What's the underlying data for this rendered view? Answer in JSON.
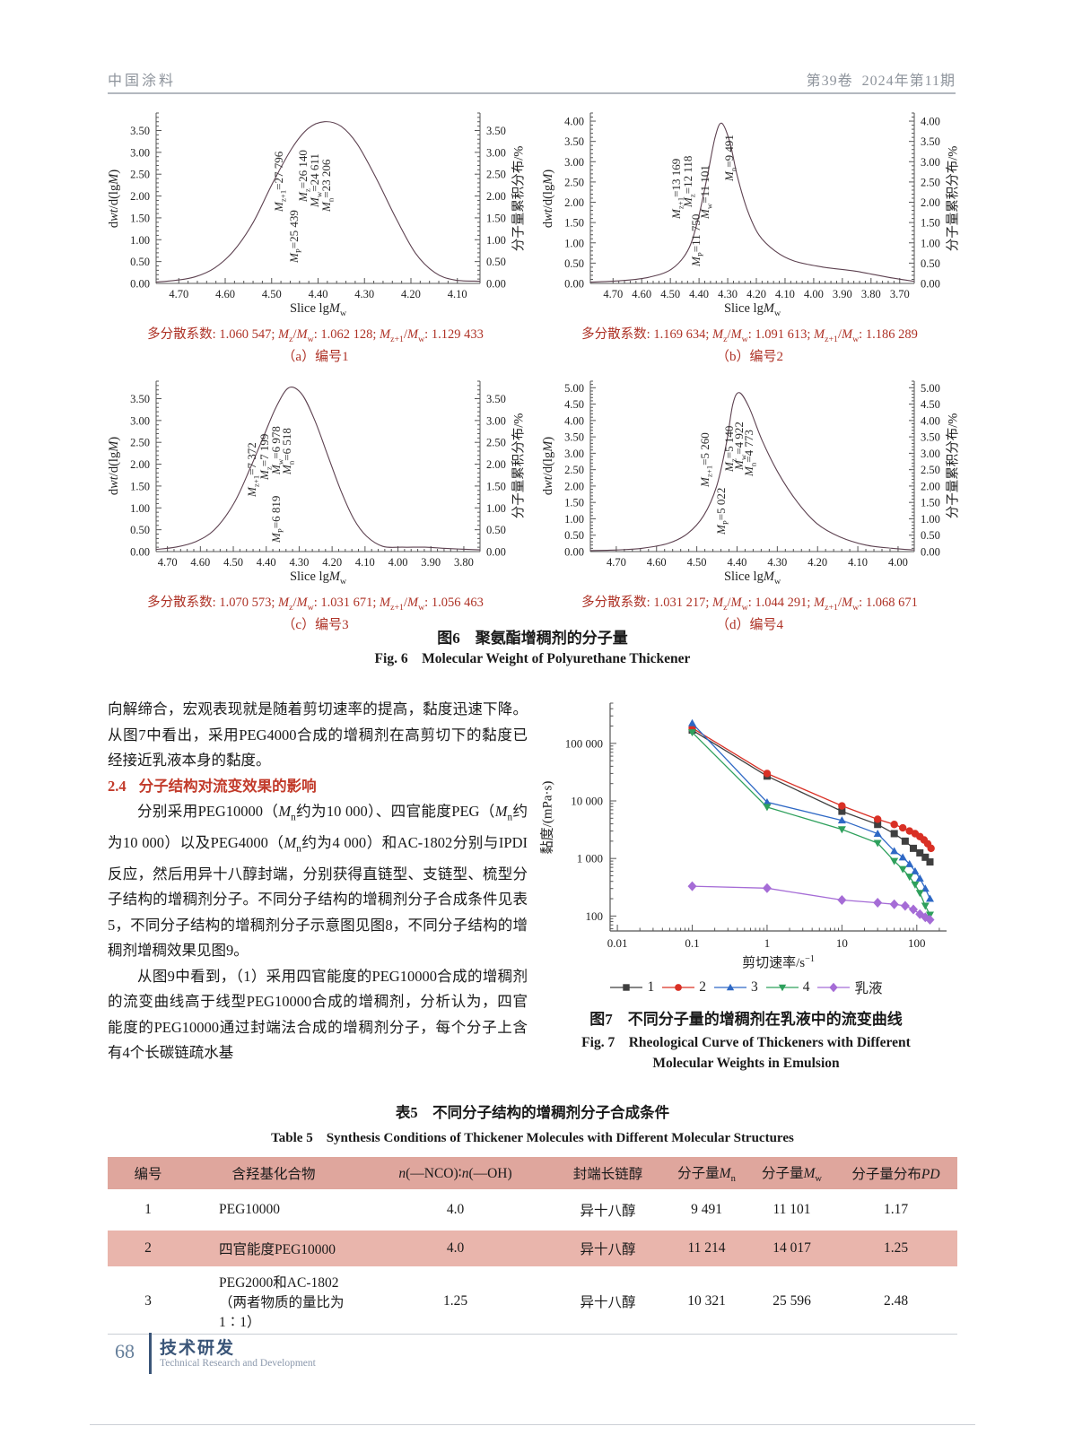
{
  "header": {
    "journal": "中国涂料",
    "volume": "第39卷",
    "issue": "2024年第11期"
  },
  "fig6": {
    "caption_cn": "图6　聚氨酯增稠剂的分子量",
    "caption_en": "Fig. 6　Molecular Weight of Polyurethane Thickener",
    "shared": {
      "y_title_left": {
        "p1": "d",
        "i1": "wt",
        "p2": "/d(lg",
        "i2": "M",
        "p3": ")"
      },
      "y_title_right": "分子量累积分布/%",
      "x_title": {
        "text": "Slice lg",
        "m": "M",
        "sub": "w"
      },
      "pd_label": "多分散系数",
      "ratio1": [
        "z",
        "w"
      ],
      "ratio2": [
        "z+1",
        "w"
      ]
    }
  },
  "section": {
    "para1": "向解缔合，宏观表现就是随着剪切速率的提高，黏度迅速下降。从图7中看出，采用PEG4000合成的增稠剂在高剪切下的黏度已经接近乳液本身的黏度。",
    "heading_num": "2.4",
    "heading_text": "分子结构对流变效果的影响",
    "para2_html": "分别采用PEG10000（<i>M</i><sub>n</sub>约为10 000）、四官能度PEG（<i>M</i><sub>n</sub>约为10 000）以及PEG4000（<i>M</i><sub>n</sub>约为4 000）和AC-1802分别与IPDI反应，然后用异十八醇封端，分别获得直链型、支链型、梳型分子结构的增稠剂分子。不同分子结构的增稠剂分子合成条件见表5，不同分子结构的增稠剂分子示意图见图8，不同分子结构的增稠剂增稠效果见图9。",
    "para3": "从图9中看到，（1）采用四官能度的PEG10000合成的增稠剂的流变曲线高于线型PEG10000合成的增稠剂，分析认为，四官能度的PEG10000通过封端法合成的增稠剂分子，每个分子上含有4个长碳链疏水基"
  },
  "fig7": {
    "caption_cn": "图7　不同分子量的增稠剂在乳液中的流变曲线",
    "caption_en1": "Fig. 7　Rheological Curve of Thickeners with Different",
    "caption_en2": "Molecular Weights in Emulsion",
    "ylabel": "黏度/(mPa·s)",
    "xlabel_main": "剪切速率/s",
    "xlabel_sup": "−1"
  },
  "chart_data": {
    "fig6_gpc": [
      {
        "type": "line",
        "id": "a",
        "sublabel": "（a）编号1",
        "pd": "1.060 547",
        "mz_mw": "1.062 128",
        "mz1_mw": "1.129 433",
        "ymax": 3.9,
        "ytick_max": 3.5,
        "x_ticks": [
          "4.70",
          "4.60",
          "4.50",
          "4.40",
          "4.30",
          "4.20",
          "4.10"
        ],
        "tick_f0": 0.07,
        "tick_f1": 0.93,
        "annotations": [
          {
            "sub": "z+1",
            "value": "27 796",
            "x": 0.4,
            "b": 0.58
          },
          {
            "sub": "P",
            "value": "25 439",
            "x": 0.445,
            "b": 0.88
          },
          {
            "sub": "z",
            "value": "26 140",
            "x": 0.475,
            "b": 0.52
          },
          {
            "sub": "w",
            "value": "24 611",
            "x": 0.51,
            "b": 0.55
          },
          {
            "sub": "n",
            "value": "23 206",
            "x": 0.545,
            "b": 0.58
          }
        ],
        "curve": [
          [
            0,
            0.03
          ],
          [
            0.06,
            0.07
          ],
          [
            0.12,
            0.15
          ],
          [
            0.18,
            0.35
          ],
          [
            0.24,
            0.75
          ],
          [
            0.3,
            1.4
          ],
          [
            0.36,
            2.3
          ],
          [
            0.42,
            3.1
          ],
          [
            0.47,
            3.55
          ],
          [
            0.52,
            3.7
          ],
          [
            0.57,
            3.6
          ],
          [
            0.62,
            3.2
          ],
          [
            0.68,
            2.4
          ],
          [
            0.74,
            1.5
          ],
          [
            0.8,
            0.7
          ],
          [
            0.86,
            0.25
          ],
          [
            0.92,
            0.08
          ],
          [
            1,
            0.05
          ]
        ]
      },
      {
        "type": "line",
        "id": "b",
        "sublabel": "（b）编号2",
        "pd": "1.169 634",
        "mz_mw": "1.091 613",
        "mz1_mw": "1.186 289",
        "ymax": 4.2,
        "ytick_max": 4.0,
        "x_ticks": [
          "4.70",
          "4.60",
          "4.50",
          "4.40",
          "4.30",
          "4.20",
          "4.10",
          "4.00",
          "3.90",
          "3.80",
          "3.70"
        ],
        "tick_f0": 0.07,
        "tick_f1": 0.955,
        "annotations": [
          {
            "sub": "z+1",
            "value": "13 169",
            "x": 0.285,
            "b": 0.62
          },
          {
            "sub": "z",
            "value": "12 118",
            "x": 0.32,
            "b": 0.55
          },
          {
            "sub": "P",
            "value": "11 750",
            "x": 0.345,
            "b": 0.9
          },
          {
            "sub": "w",
            "value": "11 101",
            "x": 0.375,
            "b": 0.62
          },
          {
            "sub": "n",
            "value": "9 491",
            "x": 0.45,
            "b": 0.4
          }
        ],
        "curve": [
          [
            0,
            0.03
          ],
          [
            0.1,
            0.07
          ],
          [
            0.18,
            0.15
          ],
          [
            0.25,
            0.35
          ],
          [
            0.3,
            0.8
          ],
          [
            0.33,
            1.5
          ],
          [
            0.36,
            2.6
          ],
          [
            0.385,
            3.6
          ],
          [
            0.405,
            3.95
          ],
          [
            0.43,
            3.5
          ],
          [
            0.455,
            2.6
          ],
          [
            0.485,
            1.8
          ],
          [
            0.52,
            1.2
          ],
          [
            0.57,
            0.8
          ],
          [
            0.63,
            0.55
          ],
          [
            0.72,
            0.4
          ],
          [
            0.82,
            0.3
          ],
          [
            0.92,
            0.15
          ],
          [
            1,
            0.05
          ]
        ]
      },
      {
        "type": "line",
        "id": "c",
        "sublabel": "（c）编号3",
        "pd": "1.070 573",
        "mz_mw": "1.031 671",
        "mz1_mw": "1.056 463",
        "ymax": 3.9,
        "ytick_max": 3.5,
        "x_ticks": [
          "4.70",
          "4.60",
          "4.50",
          "4.40",
          "4.30",
          "4.20",
          "4.10",
          "4.00",
          "3.90",
          "3.80"
        ],
        "tick_f0": 0.035,
        "tick_f1": 0.95,
        "annotations": [
          {
            "sub": "z+1",
            "value": "7 372",
            "x": 0.315,
            "b": 0.68
          },
          {
            "sub": "z",
            "value": "7 199",
            "x": 0.355,
            "b": 0.58
          },
          {
            "sub": "w",
            "value": "6 978",
            "x": 0.39,
            "b": 0.55
          },
          {
            "sub": "n",
            "value": "6 518",
            "x": 0.425,
            "b": 0.55
          },
          {
            "sub": "P",
            "value": "6 819",
            "x": 0.39,
            "b": 0.95
          }
        ],
        "curve": [
          [
            0,
            0.05
          ],
          [
            0.06,
            0.1
          ],
          [
            0.12,
            0.22
          ],
          [
            0.18,
            0.5
          ],
          [
            0.24,
            1.1
          ],
          [
            0.29,
            1.9
          ],
          [
            0.33,
            2.6
          ],
          [
            0.37,
            3.3
          ],
          [
            0.41,
            3.75
          ],
          [
            0.45,
            3.6
          ],
          [
            0.49,
            3.0
          ],
          [
            0.53,
            2.2
          ],
          [
            0.57,
            1.4
          ],
          [
            0.61,
            0.75
          ],
          [
            0.65,
            0.35
          ],
          [
            0.7,
            0.12
          ],
          [
            0.76,
            0.1
          ],
          [
            0.83,
            0.1
          ],
          [
            0.9,
            0.07
          ],
          [
            1,
            0.04
          ]
        ]
      },
      {
        "type": "line",
        "id": "d",
        "sublabel": "（d）编号4",
        "pd": "1.031 217",
        "mz_mw": "1.044 291",
        "mz1_mw": "1.068 671",
        "ymax": 5.2,
        "ytick_max": 5.0,
        "x_ticks": [
          "4.70",
          "4.60",
          "4.50",
          "4.40",
          "4.30",
          "4.20",
          "4.10",
          "4.00"
        ],
        "tick_f0": 0.08,
        "tick_f1": 0.95,
        "annotations": [
          {
            "sub": "z+1",
            "value": "5 260",
            "x": 0.375,
            "b": 0.62
          },
          {
            "sub": "P",
            "value": "5 022",
            "x": 0.425,
            "b": 0.9
          },
          {
            "sub": "z",
            "value": "5 140",
            "x": 0.45,
            "b": 0.53
          },
          {
            "sub": "w",
            "value": "4 922",
            "x": 0.48,
            "b": 0.52
          },
          {
            "sub": "n",
            "value": "4 773",
            "x": 0.51,
            "b": 0.56
          }
        ],
        "curve": [
          [
            0,
            0.03
          ],
          [
            0.08,
            0.05
          ],
          [
            0.16,
            0.1
          ],
          [
            0.24,
            0.25
          ],
          [
            0.3,
            0.55
          ],
          [
            0.35,
            1.1
          ],
          [
            0.39,
            2.0
          ],
          [
            0.42,
            3.3
          ],
          [
            0.44,
            4.5
          ],
          [
            0.46,
            4.85
          ],
          [
            0.49,
            4.4
          ],
          [
            0.53,
            3.4
          ],
          [
            0.58,
            2.4
          ],
          [
            0.64,
            1.5
          ],
          [
            0.7,
            0.85
          ],
          [
            0.77,
            0.45
          ],
          [
            0.85,
            0.2
          ],
          [
            0.93,
            0.1
          ],
          [
            1,
            0.05
          ]
        ]
      }
    ],
    "fig7_rheology": {
      "type": "line",
      "title": "不同分子量的增稠剂在乳液中的流变曲线",
      "xlabel": "剪切速率/s^-1",
      "ylabel": "黏度/(mPa·s)",
      "x_scale": "log",
      "y_scale": "log",
      "xlim": [
        0.008,
        250
      ],
      "ylim": [
        55,
        500000
      ],
      "x_ticks": [
        {
          "v": 0.01,
          "label": "0.01"
        },
        {
          "v": 0.1,
          "label": "0.1"
        },
        {
          "v": 1,
          "label": "1"
        },
        {
          "v": 10,
          "label": "10"
        },
        {
          "v": 100,
          "label": "100"
        }
      ],
      "y_ticks": [
        {
          "v": 100,
          "label": "100"
        },
        {
          "v": 1000,
          "label": "1 000"
        },
        {
          "v": 10000,
          "label": "10 000"
        },
        {
          "v": 100000,
          "label": "100 000"
        }
      ],
      "legend_position": "bottom",
      "series": [
        {
          "name": "1",
          "color": "#3f3f3f",
          "marker": "square",
          "x": [
            0.1,
            1,
            10,
            30,
            50,
            70,
            90,
            110,
            130,
            150
          ],
          "y": [
            170000,
            27000,
            6600,
            3900,
            2700,
            2000,
            1500,
            1250,
            1050,
            870
          ]
        },
        {
          "name": "2",
          "color": "#d93025",
          "marker": "circle",
          "x": [
            0.1,
            1,
            10,
            30,
            50,
            65,
            80,
            95,
            110,
            125,
            140,
            155
          ],
          "y": [
            185000,
            30000,
            8200,
            4800,
            3900,
            3400,
            3000,
            2700,
            2400,
            2100,
            1800,
            1500
          ]
        },
        {
          "name": "3",
          "color": "#2e68c5",
          "marker": "triangle-up",
          "x": [
            0.1,
            1,
            10,
            30,
            50,
            65,
            80,
            95,
            110,
            130,
            150
          ],
          "y": [
            225000,
            9500,
            4600,
            2700,
            1350,
            1050,
            800,
            600,
            450,
            300,
            200
          ]
        },
        {
          "name": "4",
          "color": "#2ea05c",
          "marker": "triangle-down",
          "x": [
            0.1,
            1,
            10,
            30,
            50,
            65,
            80,
            95,
            110,
            130,
            150
          ],
          "y": [
            155000,
            7800,
            3200,
            1850,
            900,
            650,
            480,
            350,
            250,
            150,
            105
          ]
        },
        {
          "name": "乳液",
          "color": "#a56cd6",
          "marker": "diamond",
          "x": [
            0.1,
            1,
            10,
            30,
            50,
            70,
            90,
            110,
            130,
            150
          ],
          "y": [
            330,
            305,
            190,
            170,
            160,
            150,
            130,
            108,
            95,
            86
          ]
        }
      ]
    }
  },
  "table5": {
    "title_cn": "表5　不同分子结构的增稠剂分子合成条件",
    "title_en": "Table 5　Synthesis Conditions of Thickener Molecules with Different Molecular Structures",
    "headers_html": [
      "编号",
      "含羟基化合物",
      "<i>n</i>(—NCO)∶<i>n</i>(—OH)",
      "封端长链醇",
      "分子量<i>M</i><sub>n</sub>",
      "分子量<i>M</i><sub>w</sub>",
      "分子量分布<i>PD</i>"
    ],
    "rows_html": [
      [
        "1",
        "PEG10000",
        "4.0",
        "异十八醇",
        "9 491",
        "11 101",
        "1.17"
      ],
      [
        "2",
        "四官能度PEG10000",
        "4.0",
        "异十八醇",
        "11 214",
        "14 017",
        "1.25"
      ],
      [
        "3",
        "PEG2000和AC-1802<br>（两者物质的量比为1∶1）",
        "1.25",
        "异十八醇",
        "10 321",
        "25 596",
        "2.48"
      ]
    ]
  },
  "footer": {
    "page": "68",
    "label_cn": "技术研发",
    "label_en": "Technical Research and Development"
  }
}
